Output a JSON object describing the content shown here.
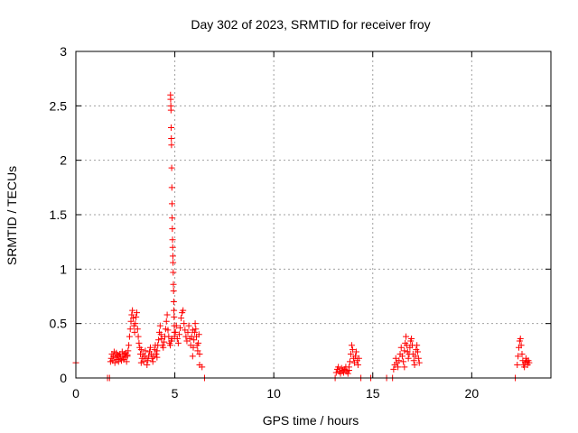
{
  "chart_data": {
    "type": "scatter",
    "title": "Day 302 of 2023, SRMTID for receiver froy",
    "xlabel": "GPS time / hours",
    "ylabel": "SRMTID / TECUs",
    "xlim": [
      0,
      24
    ],
    "ylim": [
      0,
      3
    ],
    "xticks": [
      0,
      5,
      10,
      15,
      20
    ],
    "yticks": [
      0,
      0.5,
      1,
      1.5,
      2,
      2.5,
      3
    ],
    "xtick_labels": [
      "0",
      "5",
      "10",
      "15",
      "20"
    ],
    "ytick_labels": [
      "0",
      "0.5",
      "1",
      "1.5",
      "2",
      "2.5",
      "3"
    ],
    "grid": true,
    "marker": "plus",
    "series": [
      {
        "name": "SRMTID",
        "color": "#ff0000",
        "clusters": [
          {
            "start": 0.0,
            "end": 0.05,
            "values": [
              0.14
            ]
          },
          {
            "start": 1.6,
            "end": 1.7,
            "values": [
              0.0,
              0.0
            ]
          },
          {
            "start": 1.75,
            "end": 2.6,
            "values": [
              0.15,
              0.18,
              0.22,
              0.16,
              0.2,
              0.24,
              0.14,
              0.19,
              0.23,
              0.17,
              0.21,
              0.15,
              0.2,
              0.22,
              0.18,
              0.16,
              0.24,
              0.2,
              0.17,
              0.22,
              0.19,
              0.23,
              0.15,
              0.21
            ]
          },
          {
            "start": 2.6,
            "end": 3.3,
            "values": [
              0.2,
              0.25,
              0.3,
              0.38,
              0.45,
              0.52,
              0.58,
              0.62,
              0.55,
              0.48,
              0.42,
              0.5,
              0.56,
              0.6,
              0.45,
              0.38,
              0.32,
              0.28,
              0.22,
              0.26
            ]
          },
          {
            "start": 3.3,
            "end": 4.1,
            "values": [
              0.14,
              0.18,
              0.22,
              0.15,
              0.2,
              0.25,
              0.18,
              0.12,
              0.16,
              0.2,
              0.24,
              0.28,
              0.22,
              0.18,
              0.15,
              0.2,
              0.26,
              0.3,
              0.22,
              0.19
            ]
          },
          {
            "start": 4.1,
            "end": 4.85,
            "values": [
              0.25,
              0.3,
              0.35,
              0.42,
              0.48,
              0.4,
              0.36,
              0.3,
              0.28,
              0.33,
              0.38,
              0.45,
              0.52,
              0.58,
              0.44,
              0.38,
              0.32,
              0.3,
              0.34,
              0.36
            ]
          },
          {
            "start": 4.78,
            "end": 4.98,
            "values": [
              2.6,
              2.56,
              2.5,
              2.46,
              2.3,
              2.2,
              2.14,
              1.93,
              1.75,
              1.6,
              1.47,
              1.37,
              1.27,
              1.2,
              1.12,
              1.06,
              0.97,
              0.86,
              0.8,
              0.7,
              0.62,
              0.56,
              0.48,
              0.42
            ]
          },
          {
            "start": 4.98,
            "end": 5.9,
            "values": [
              0.38,
              0.42,
              0.48,
              0.36,
              0.32,
              0.4,
              0.46,
              0.55,
              0.6,
              0.62,
              0.5,
              0.44,
              0.38,
              0.34,
              0.42,
              0.48,
              0.36,
              0.3,
              0.38,
              0.44
            ]
          },
          {
            "start": 5.9,
            "end": 6.25,
            "values": [
              0.2,
              0.28,
              0.35,
              0.42,
              0.5,
              0.45,
              0.38,
              0.3,
              0.25,
              0.32,
              0.4,
              0.22
            ]
          },
          {
            "start": 6.25,
            "end": 6.5,
            "values": [
              0.12,
              0.1,
              0.0
            ]
          },
          {
            "start": 13.1,
            "end": 13.8,
            "values": [
              0.0,
              0.05,
              0.08,
              0.1,
              0.06,
              0.04,
              0.09,
              0.07,
              0.05,
              0.08,
              0.1,
              0.06,
              0.04,
              0.07
            ]
          },
          {
            "start": 13.8,
            "end": 14.3,
            "values": [
              0.1,
              0.15,
              0.22,
              0.3,
              0.26,
              0.18,
              0.14,
              0.2,
              0.24,
              0.16,
              0.12,
              0.18
            ]
          },
          {
            "start": 14.4,
            "end": 14.9,
            "values": [
              0.0,
              0.0
            ]
          },
          {
            "start": 15.7,
            "end": 15.8,
            "values": [
              0.0
            ]
          },
          {
            "start": 16.0,
            "end": 16.6,
            "values": [
              0.0,
              0.08,
              0.12,
              0.18,
              0.14,
              0.1,
              0.16,
              0.22,
              0.28,
              0.2,
              0.15,
              0.1
            ]
          },
          {
            "start": 16.6,
            "end": 17.35,
            "values": [
              0.25,
              0.32,
              0.38,
              0.3,
              0.24,
              0.18,
              0.22,
              0.28,
              0.34,
              0.36,
              0.3,
              0.22,
              0.16,
              0.12,
              0.2,
              0.26,
              0.3,
              0.24,
              0.18,
              0.14
            ]
          },
          {
            "start": 22.2,
            "end": 22.3,
            "values": [
              0.0
            ]
          },
          {
            "start": 22.3,
            "end": 22.9,
            "values": [
              0.12,
              0.2,
              0.28,
              0.34,
              0.36,
              0.3,
              0.22,
              0.16,
              0.12,
              0.1,
              0.14,
              0.18,
              0.15,
              0.12,
              0.16,
              0.14
            ]
          }
        ]
      }
    ]
  }
}
